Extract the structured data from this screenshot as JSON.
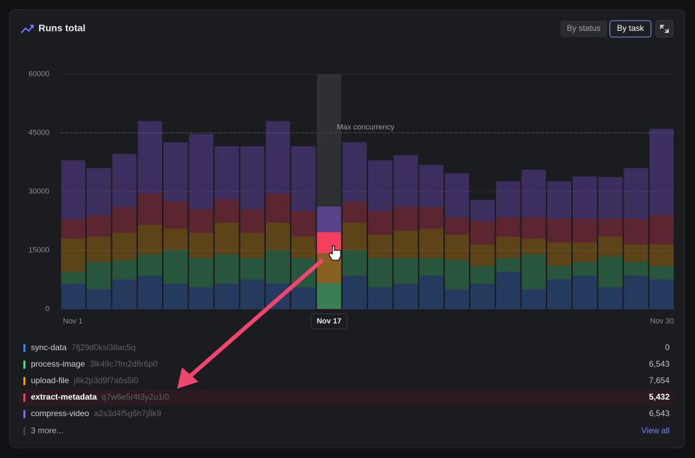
{
  "chart_data": {
    "type": "stacked-bar",
    "title": "Runs total",
    "categories": [
      "Nov 1",
      null,
      null,
      null,
      null,
      null,
      null,
      null,
      null,
      null,
      "Nov 17",
      null,
      null,
      null,
      null,
      null,
      null,
      null,
      null,
      null,
      null,
      null,
      null,
      "Nov 30"
    ],
    "series": [
      {
        "name": "sync-data",
        "id": "7fj29d0ksl38ac5q",
        "color": "#3b82f6",
        "values": [
          6500,
          5000,
          7500,
          8500,
          6500,
          5500,
          6500,
          7500,
          6500,
          5500,
          0,
          8500,
          5500,
          6500,
          8500,
          5000,
          6500,
          9500,
          5000,
          7500,
          8500,
          5500,
          8500,
          7500
        ],
        "value_labels": [
          null,
          null,
          null,
          null,
          null,
          null,
          null,
          null,
          null,
          null,
          "0",
          null,
          null,
          null,
          null,
          null,
          null,
          null,
          null,
          null,
          null,
          null,
          null,
          null
        ]
      },
      {
        "name": "process-image",
        "id": "3lk49c7fm2d8r6p0",
        "color": "#4ade80",
        "values": [
          3000,
          7000,
          5000,
          5500,
          8500,
          7500,
          7500,
          5500,
          8500,
          7500,
          6543,
          6500,
          7500,
          6500,
          4500,
          7500,
          4500,
          3500,
          9000,
          3500,
          3500,
          8000,
          3500,
          3500
        ],
        "value_labels": [
          null,
          null,
          null,
          null,
          null,
          null,
          null,
          null,
          null,
          null,
          "6,543",
          null,
          null,
          null,
          null,
          null,
          null,
          null,
          null,
          null,
          null,
          null,
          null,
          null
        ]
      },
      {
        "name": "upload-file",
        "id": "j8k2p3d9f7a6s5l0",
        "color": "#f59e0b",
        "values": [
          8500,
          6500,
          7000,
          7500,
          5500,
          6500,
          8000,
          6500,
          7000,
          5500,
          7654,
          7000,
          6000,
          7000,
          7500,
          6500,
          5500,
          5500,
          4000,
          6000,
          5000,
          5000,
          4500,
          5500
        ],
        "value_labels": [
          null,
          null,
          null,
          null,
          null,
          null,
          null,
          null,
          null,
          null,
          "7,654",
          null,
          null,
          null,
          null,
          null,
          null,
          null,
          null,
          null,
          null,
          null,
          null,
          null
        ]
      },
      {
        "name": "extract-metadata",
        "id": "q7w6e5r4t3y2u1i0",
        "color": "#f43f5e",
        "values": [
          5000,
          5500,
          6500,
          8000,
          7000,
          6000,
          6000,
          6000,
          7500,
          6500,
          5432,
          5500,
          6000,
          6000,
          5500,
          4500,
          6000,
          5000,
          5500,
          6000,
          6000,
          4500,
          6500,
          7500
        ],
        "value_labels": [
          null,
          null,
          null,
          null,
          null,
          null,
          null,
          null,
          null,
          null,
          "5,432",
          null,
          null,
          null,
          null,
          null,
          null,
          null,
          null,
          null,
          null,
          null,
          null,
          null
        ]
      },
      {
        "name": "compress-video",
        "id": "a2s3d4f5g6h7j8k9",
        "color": "#8b5cf6",
        "values": [
          15000,
          12000,
          13600,
          18500,
          15100,
          19200,
          13600,
          16100,
          18500,
          16600,
          6543,
          15100,
          13000,
          13300,
          10800,
          11200,
          5400,
          9100,
          12100,
          9600,
          10900,
          10700,
          13000,
          22000
        ],
        "value_labels": [
          null,
          null,
          null,
          null,
          null,
          null,
          null,
          null,
          null,
          null,
          "6,543",
          null,
          null,
          null,
          null,
          null,
          null,
          null,
          null,
          null,
          null,
          null,
          null,
          null
        ]
      }
    ],
    "ylim": [
      0,
      60000
    ],
    "yticks": [
      0,
      15000,
      30000,
      45000,
      60000
    ],
    "grid": true,
    "reference_line": {
      "value": 45000,
      "label": "Max concurrency"
    },
    "hover_index": 10,
    "highlight_series": 3
  },
  "header": {
    "toggles": [
      "By status",
      "By task"
    ],
    "active_toggle": 1
  },
  "footer": {
    "more": "3 more...",
    "link": "View all"
  }
}
